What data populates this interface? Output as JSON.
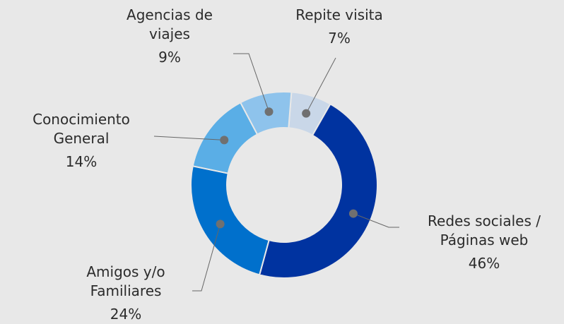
{
  "chart_data": {
    "type": "donut",
    "categories": [
      "Repite visita",
      "Redes sociales /\nPáginas web",
      "Amigos y/o\nFamiliares",
      "Conocimiento\nGeneral",
      "Agencias de\nviajes"
    ],
    "values": [
      7,
      46,
      24,
      14,
      9
    ],
    "value_labels": [
      "7%",
      "46%",
      "24%",
      "14%",
      "9%"
    ],
    "colors": [
      "#c9d7e8",
      "#0033a0",
      "#0070cc",
      "#5aaee6",
      "#8ec3ec"
    ]
  }
}
